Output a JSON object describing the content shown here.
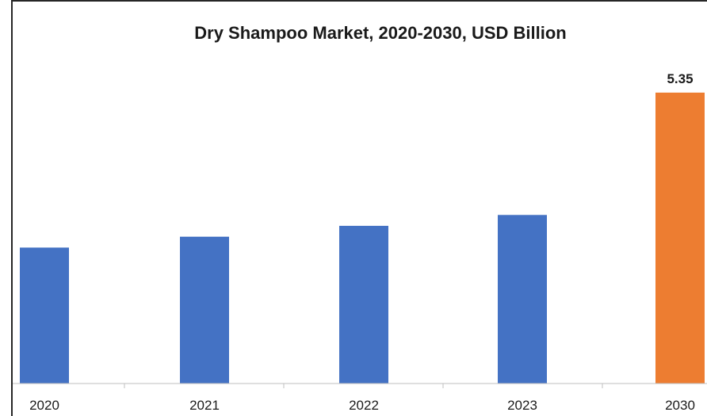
{
  "chart_data": {
    "type": "bar",
    "title": "Dry Shampoo Market, 2020-2030, USD Billion",
    "xlabel": "",
    "ylabel": "",
    "categories": [
      "2020",
      "2021",
      "2022",
      "2023",
      "2030"
    ],
    "values": [
      2.5,
      2.7,
      2.9,
      3.1,
      5.35
    ],
    "data_labels": [
      "",
      "",
      "",
      "",
      "5.35"
    ],
    "ylim": [
      0,
      5.8
    ],
    "grid": false,
    "legend": "none",
    "colors": [
      "#4472C4",
      "#4472C4",
      "#4472C4",
      "#4472C4",
      "#ED7D31"
    ]
  }
}
